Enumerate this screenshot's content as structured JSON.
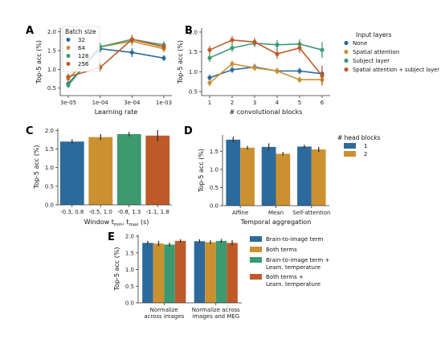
{
  "colors": {
    "blue": "#2c6a9b",
    "orange": "#cb9030",
    "green": "#3c9a70",
    "red": "#bf5a28"
  },
  "chart_data": [
    {
      "panel": "A",
      "type": "line",
      "xlabel": "Learning rate",
      "ylabel": "Top-5 acc (%)",
      "categories": [
        "3e-05",
        "1e-04",
        "3e-04",
        "1e-03"
      ],
      "yticks": [
        "0.5",
        "1.0",
        "1.5",
        "2.0"
      ],
      "ylim": [
        0.3,
        2.1
      ],
      "legend_title": "Batch size",
      "legend_position": "top-left",
      "series": [
        {
          "name": "32",
          "color": "blue",
          "values": [
            0.62,
            1.55,
            1.45,
            1.3
          ],
          "err": [
            0.08,
            0.1,
            0.12,
            0.08
          ]
        },
        {
          "name": "64",
          "color": "orange",
          "values": [
            0.75,
            1.6,
            1.75,
            1.55
          ],
          "err": [
            0.08,
            0.1,
            0.12,
            0.1
          ]
        },
        {
          "name": "128",
          "color": "green",
          "values": [
            0.58,
            1.6,
            1.8,
            1.65
          ],
          "err": [
            0.08,
            0.1,
            0.12,
            0.1
          ]
        },
        {
          "name": "256",
          "color": "red",
          "values": [
            0.8,
            1.05,
            1.8,
            1.6
          ],
          "err": [
            0.08,
            0.1,
            0.1,
            0.1
          ]
        }
      ]
    },
    {
      "panel": "B",
      "type": "line",
      "xlabel": "# convolutional blocks",
      "ylabel": "Top-5 acc (%)",
      "categories": [
        "1",
        "2",
        "3",
        "4",
        "5",
        "6"
      ],
      "yticks": [
        "0.5",
        "1.0",
        "1.5",
        "2.0"
      ],
      "ylim": [
        0.4,
        2.1
      ],
      "legend_title": "Input layers",
      "legend_position": "outside-right",
      "series": [
        {
          "name": "None",
          "color": "blue",
          "values": [
            0.85,
            1.05,
            1.12,
            1.02,
            1.02,
            0.95
          ],
          "err": [
            0.08,
            0.08,
            0.08,
            0.08,
            0.08,
            0.1
          ]
        },
        {
          "name": "Spatial attention",
          "color": "orange",
          "values": [
            0.72,
            1.2,
            1.1,
            1.02,
            0.8,
            0.8
          ],
          "err": [
            0.08,
            0.08,
            0.08,
            0.08,
            0.08,
            0.1
          ]
        },
        {
          "name": "Subject layer",
          "color": "green",
          "values": [
            1.35,
            1.6,
            1.72,
            1.68,
            1.7,
            1.55
          ],
          "err": [
            0.1,
            0.1,
            0.1,
            0.12,
            0.12,
            0.2
          ]
        },
        {
          "name": "Spatial attention + subject layer",
          "color": "red",
          "values": [
            1.55,
            1.8,
            1.75,
            1.45,
            1.6,
            0.9
          ],
          "err": [
            0.1,
            0.1,
            0.1,
            0.12,
            0.12,
            0.25
          ]
        }
      ]
    },
    {
      "panel": "C",
      "type": "bar",
      "xlabel_parts": [
        "Window t",
        "min",
        ", t",
        "max",
        " (s)"
      ],
      "ylabel": "Top-5 acc (%)",
      "categories": [
        "-0.3, 0.8",
        "-0.5, 1.0",
        "-0.8, 1.3",
        "-1.1, 1.8"
      ],
      "yticks": [
        "0.0",
        "0.5",
        "1.0",
        "1.5",
        "2.0"
      ],
      "ylim": [
        0,
        2.05
      ],
      "values": [
        1.7,
        1.82,
        1.9,
        1.86
      ],
      "err": [
        0.06,
        0.08,
        0.06,
        0.15
      ],
      "bar_colors": [
        "blue",
        "orange",
        "green",
        "red"
      ]
    },
    {
      "panel": "D",
      "type": "bar",
      "xlabel": "Temporal aggregation",
      "ylabel": "Top-5 acc (%)",
      "categories": [
        "Affine",
        "Mean",
        "Self-attention"
      ],
      "yticks": [
        "0.0",
        "0.5",
        "1.0",
        "1.5"
      ],
      "ylim": [
        0,
        1.95
      ],
      "legend_title": "# head blocks",
      "legend_position": "outside-right",
      "series": [
        {
          "name": "1",
          "color": "blue",
          "values": [
            1.82,
            1.62,
            1.63
          ],
          "err": [
            0.08,
            0.1,
            0.05
          ]
        },
        {
          "name": "2",
          "color": "orange",
          "values": [
            1.6,
            1.43,
            1.55
          ],
          "err": [
            0.05,
            0.05,
            0.07
          ]
        }
      ]
    },
    {
      "panel": "E",
      "type": "bar",
      "xlabel": "",
      "ylabel": "Top-5 acc (%)",
      "categories": [
        "Normalize across images",
        "Normalize across images and MEG"
      ],
      "category_lines": [
        [
          "Normalize",
          "across images"
        ],
        [
          "Normalize across",
          "images and MEG"
        ]
      ],
      "yticks": [
        "0.0",
        "0.5",
        "1.0",
        "1.5",
        "2.0"
      ],
      "ylim": [
        0,
        2.05
      ],
      "legend_position": "outside-right",
      "series": [
        {
          "name": "Brain-to-image term",
          "legend_lines": [
            "Brain-to-image term"
          ],
          "color": "blue",
          "values": [
            1.8,
            1.85
          ],
          "err": [
            0.06,
            0.06
          ]
        },
        {
          "name": "Both terms",
          "legend_lines": [
            "Both terms"
          ],
          "color": "orange",
          "values": [
            1.78,
            1.82
          ],
          "err": [
            0.08,
            0.06
          ]
        },
        {
          "name": "Brain-to-image term + Learn. temperature",
          "legend_lines": [
            "Brain-to-image term +",
            "Learn. temperature"
          ],
          "color": "green",
          "values": [
            1.75,
            1.86
          ],
          "err": [
            0.06,
            0.06
          ]
        },
        {
          "name": "Both terms + Learn. temperature",
          "legend_lines": [
            "Both terms +",
            "Learn. temperature"
          ],
          "color": "red",
          "values": [
            1.86,
            1.8
          ],
          "err": [
            0.05,
            0.08
          ]
        }
      ]
    }
  ]
}
